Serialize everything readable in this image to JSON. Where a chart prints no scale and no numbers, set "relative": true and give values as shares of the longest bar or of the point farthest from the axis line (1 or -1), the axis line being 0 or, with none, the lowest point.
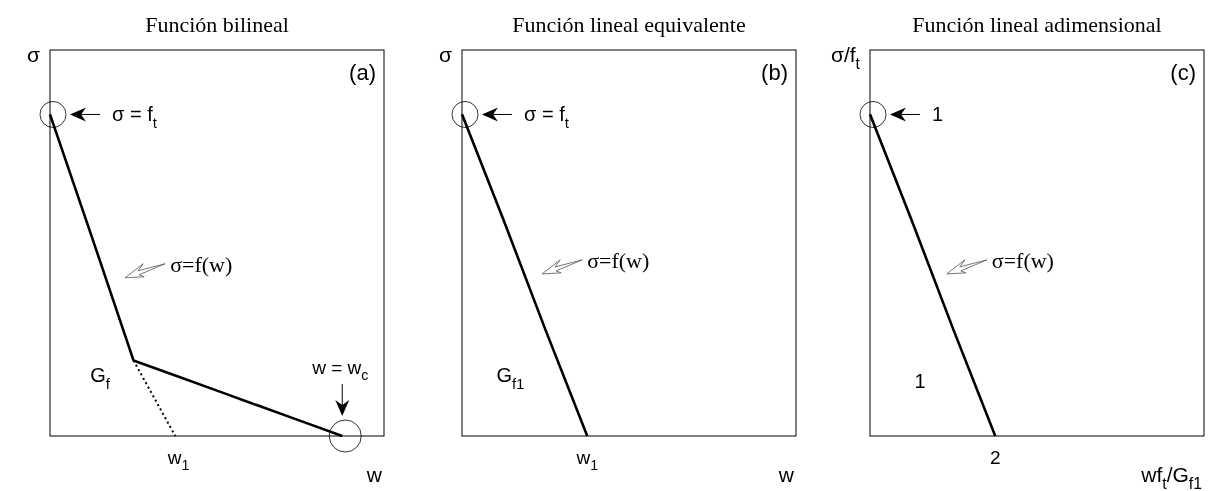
{
  "chart_data": [
    {
      "type": "line",
      "title": "Función bilineal",
      "xlabel": "w",
      "ylabel": "σ",
      "relative": true,
      "marker": "none",
      "categories": [
        null,
        null,
        null,
        null,
        null,
        null,
        null,
        null,
        null
      ],
      "series": [
        {
          "color": "#000000",
          "values": [
            1,
            0.62,
            0.235,
            0.188,
            0.141,
            0.094,
            0.047,
            0,
            null
          ],
          "line_style": "solid"
        },
        {
          "color": "#000000",
          "values": [
            null,
            null,
            0.235,
            0,
            null,
            null,
            null,
            null,
            null
          ],
          "line_style": "dotted"
        }
      ],
      "annotations": [
        "(a)",
        "σ = f$_{t}$",
        "σ=f(w)",
        "w = w$_{c}$",
        "G$_{f}$",
        "w$_{1}$"
      ]
    },
    {
      "type": "line",
      "title": "Función lineal equivalente",
      "xlabel": "w",
      "ylabel": "σ",
      "relative": true,
      "marker": "none",
      "categories": [
        null,
        null,
        null,
        null,
        null,
        null,
        null,
        null,
        null
      ],
      "series": [
        {
          "color": "#000000",
          "values": [
            1,
            0.67,
            0.33,
            0,
            null,
            null,
            null,
            null,
            null
          ],
          "line_style": "solid"
        }
      ],
      "annotations": [
        "(b)",
        "σ = f$_{t}$",
        "σ=f(w)",
        "G$_{f1}$",
        "w$_{1}$"
      ]
    },
    {
      "type": "line",
      "title": "Función lineal adimensional",
      "xlabel": "wf$_{t}$/G$_{f1}$",
      "ylabel": "σ/f$_{t}$",
      "relative": true,
      "marker": "none",
      "categories": [
        null,
        null,
        null,
        null,
        null,
        null,
        null,
        null,
        null
      ],
      "series": [
        {
          "color": "#000000",
          "values": [
            1,
            0.67,
            0.33,
            0,
            null,
            null,
            null,
            null,
            null
          ],
          "line_style": "solid"
        }
      ],
      "annotations": [
        "(c)",
        "1",
        "σ=f(w)",
        "1",
        "2"
      ]
    }
  ]
}
